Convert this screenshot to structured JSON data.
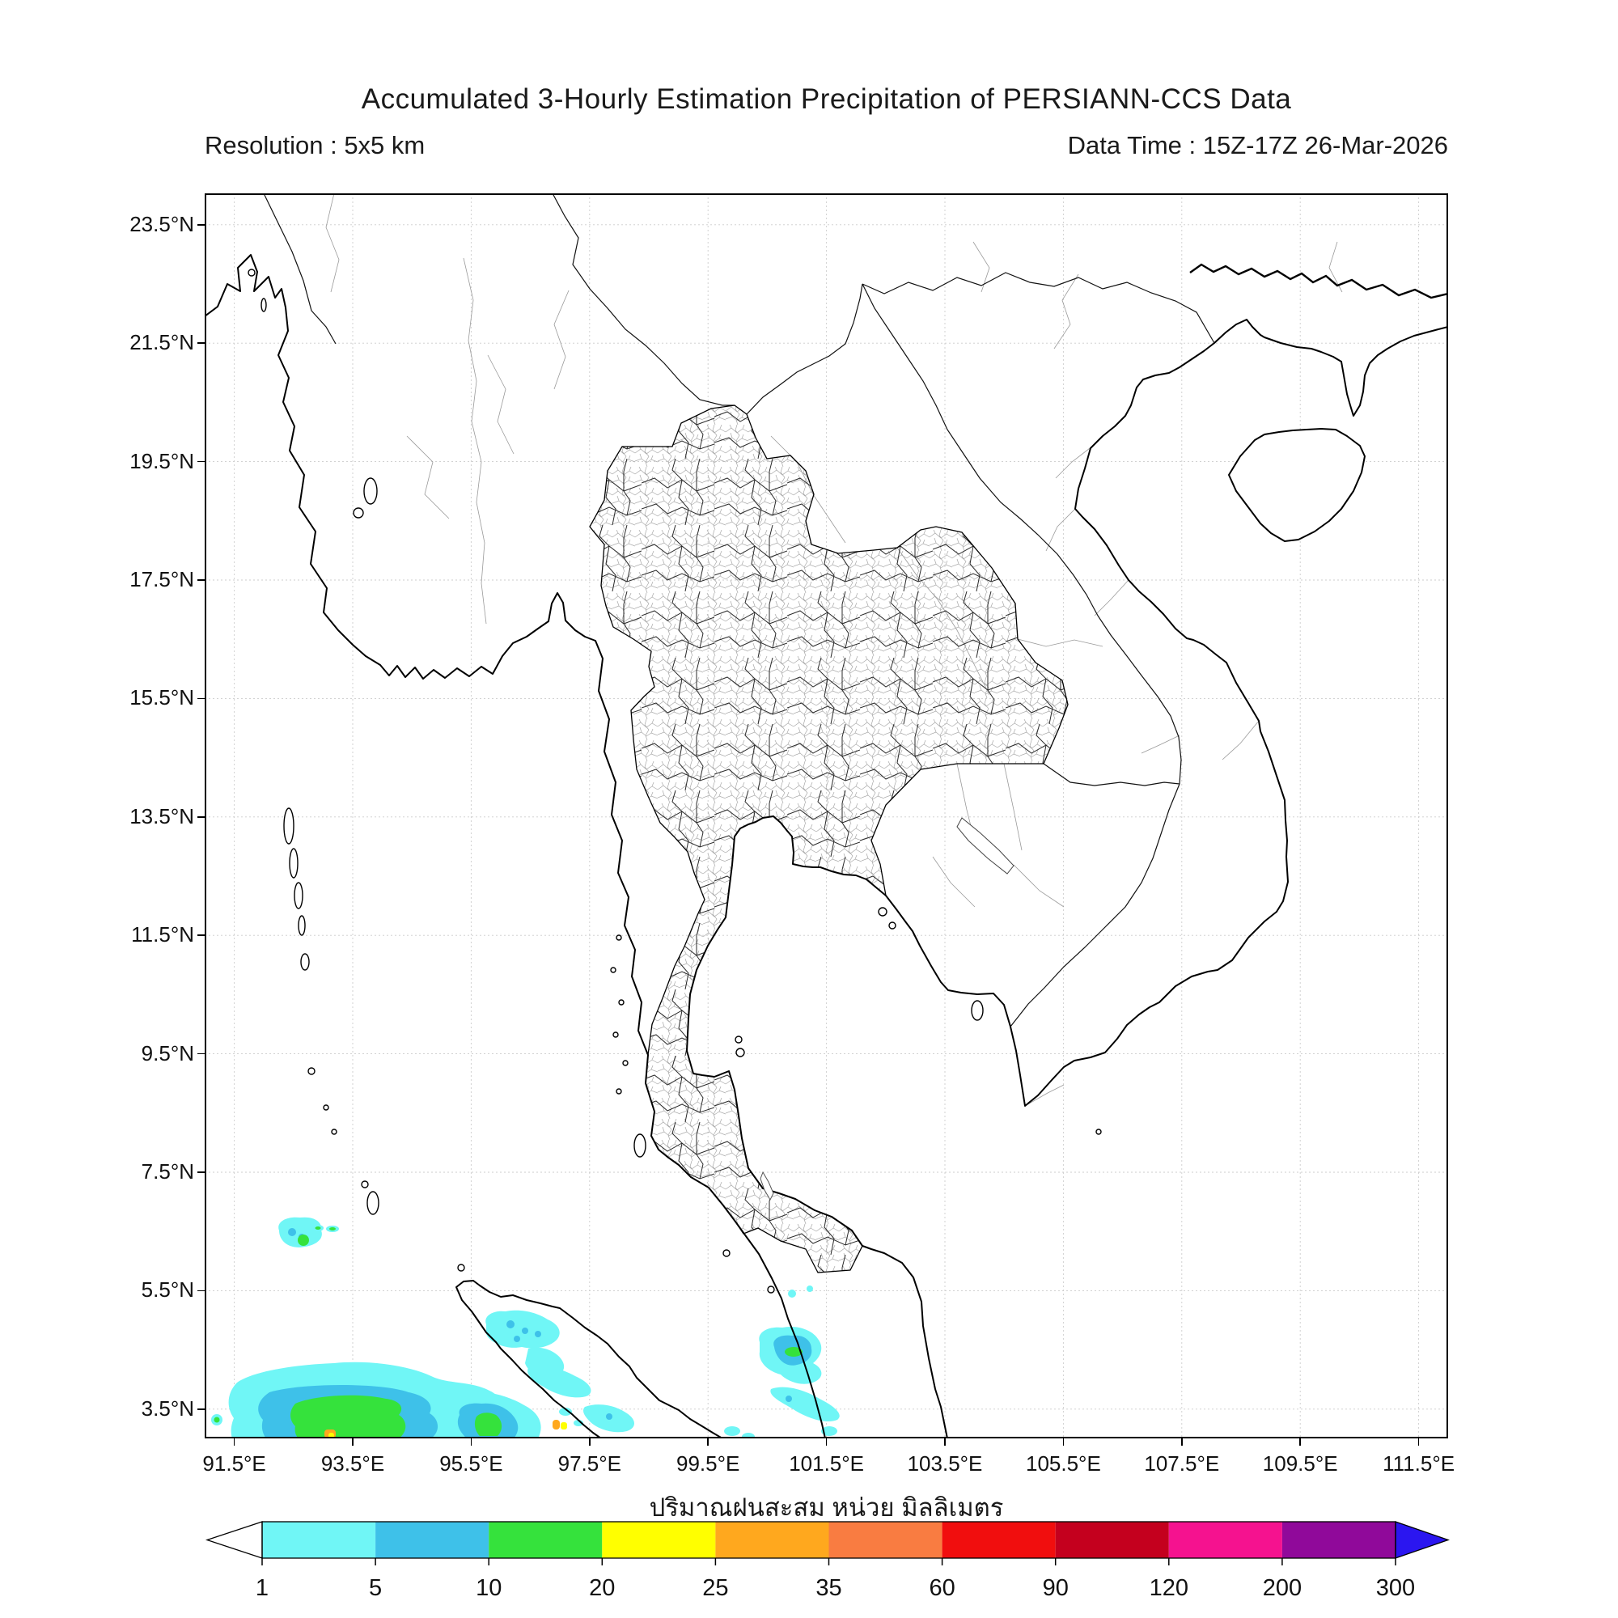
{
  "header": {
    "title": "Accumulated 3-Hourly Estimation Precipitation of PERSIANN-CCS Data",
    "resolution_label": "Resolution : 5x5 km",
    "datatime_label": "Data Time : 15Z-17Z 26-Mar-2026"
  },
  "map": {
    "y_tick_labels": [
      "23.5°N",
      "21.5°N",
      "19.5°N",
      "17.5°N",
      "15.5°N",
      "13.5°N",
      "11.5°N",
      "9.5°N",
      "7.5°N",
      "5.5°N",
      "3.5°N"
    ],
    "x_tick_labels": [
      "91.5°E",
      "93.5°E",
      "95.5°E",
      "97.5°E",
      "99.5°E",
      "101.5°E",
      "103.5°E",
      "105.5°E",
      "107.5°E",
      "109.5°E",
      "111.5°E"
    ],
    "grid_color": "#cccccc",
    "coast_color": "#000000"
  },
  "footer": {
    "unit_label": "ปริมาณฝนสะสม หน่วย มิลลิเมตร"
  },
  "colorbar": {
    "levels": [
      "1",
      "5",
      "10",
      "20",
      "25",
      "35",
      "60",
      "90",
      "120",
      "200",
      "300"
    ],
    "segment_colors": [
      "#70f6f6",
      "#3ec1e9",
      "#35e23c",
      "#ffff00",
      "#ffa81e",
      "#f97c41",
      "#f10e0e",
      "#c4001e",
      "#f5128f",
      "#90099a"
    ],
    "under_arrow_color": "#ffffff",
    "over_arrow_color": "#2b16f0"
  },
  "chart_data": {
    "type": "heatmap",
    "title": "Accumulated 3-Hourly Estimation Precipitation of PERSIANN-CCS Data",
    "units": "mm",
    "lon_range_deg_e": [
      91,
      112
    ],
    "lat_range_deg_n": [
      3,
      24
    ],
    "grid_interval_deg": 2,
    "x_ticks_deg_e": [
      91.5,
      93.5,
      95.5,
      97.5,
      99.5,
      101.5,
      103.5,
      105.5,
      107.5,
      109.5,
      111.5
    ],
    "y_ticks_deg_n": [
      3.5,
      5.5,
      7.5,
      9.5,
      11.5,
      13.5,
      15.5,
      17.5,
      19.5,
      21.5,
      23.5
    ],
    "colorbar_levels_mm": [
      1,
      5,
      10,
      20,
      25,
      35,
      60,
      90,
      120,
      200,
      300
    ],
    "precipitation_areas": [
      {
        "lon_e": 93.3,
        "lat_n": 3.4,
        "extent": "91.5-95.5E / 3.0-4.0N",
        "peak_band_mm": "25-35",
        "note": "large cluster west of Sumatra, green core with small orange/yellow spot at bottom edge"
      },
      {
        "lon_e": 95.2,
        "lat_n": 3.2,
        "peak_band_mm": "10-20",
        "note": "secondary lobe with green core, cut by bottom frame"
      },
      {
        "lon_e": 92.6,
        "lat_n": 6.3,
        "peak_band_mm": "10-20",
        "note": "small cell in Andaman Sea with green core"
      },
      {
        "lon_e": 96.2,
        "lat_n": 4.8,
        "peak_band_mm": "5-10",
        "note": "cells over northern Sumatra"
      },
      {
        "lon_e": 97.0,
        "lat_n": 3.2,
        "peak_band_mm": "20-35",
        "note": "tiny orange/yellow convective dot on Sumatra"
      },
      {
        "lon_e": 100.9,
        "lat_n": 4.3,
        "peak_band_mm": "10-20",
        "note": "cell on Malaysian west coast with green core and SE cyan streak"
      }
    ]
  }
}
